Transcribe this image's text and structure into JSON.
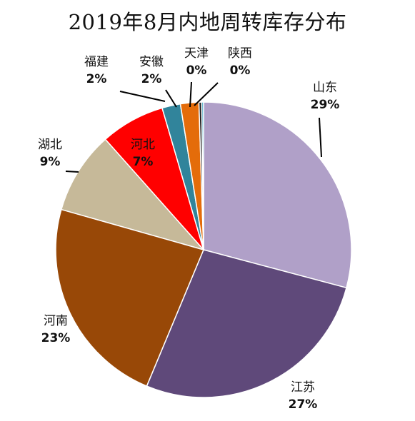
{
  "chart_data": {
    "type": "pie",
    "title": "2019年8月内地周转库存分布",
    "slices": [
      {
        "name": "山东",
        "label": "29%",
        "value": 29,
        "color": "#b0a0c8"
      },
      {
        "name": "江苏",
        "label": "27%",
        "value": 27,
        "color": "#5f497a"
      },
      {
        "name": "河南",
        "label": "23%",
        "value": 23,
        "color": "#984807"
      },
      {
        "name": "湖北",
        "label": "9%",
        "value": 9,
        "color": "#c6b999"
      },
      {
        "name": "河北",
        "label": "7%",
        "value": 7,
        "color": "#ff0000"
      },
      {
        "name": "福建",
        "label": "2%",
        "value": 2,
        "color": "#31849b"
      },
      {
        "name": "安徽",
        "label": "2%",
        "value": 2,
        "color": "#e46c0a"
      },
      {
        "name": "天津",
        "label": "0%",
        "value": 0.3,
        "color": "#1f1f1f"
      },
      {
        "name": "陕西",
        "label": "0%",
        "value": 0.2,
        "color": "#4bacc6"
      }
    ]
  }
}
